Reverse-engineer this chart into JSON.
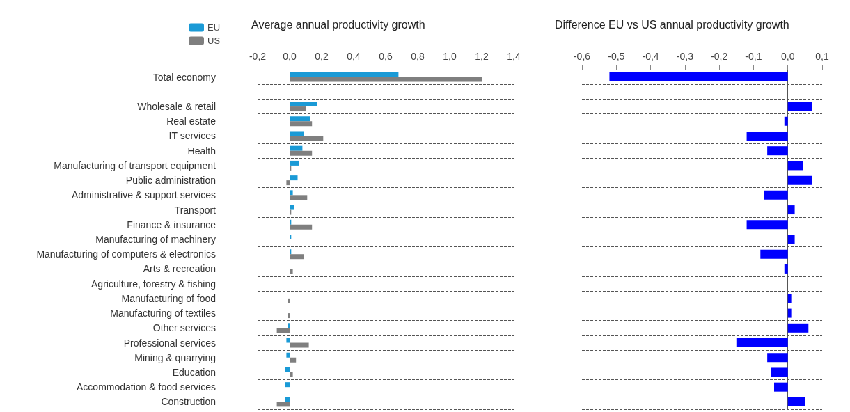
{
  "chart_data": [
    {
      "type": "bar",
      "orientation": "horizontal",
      "title": "Average annual productivity growth",
      "categories": [
        "Total economy",
        null,
        "Wholesale & retail",
        "Real estate",
        "IT services",
        "Health",
        "Manufacturing of transport equipment",
        "Public administration",
        "Administrative & support services",
        "Transport",
        "Finance & insurance",
        "Manufacturing of machinery",
        "Manufacturing of computers & electronics",
        "Arts & recreation",
        "Agriculture, forestry & fishing",
        "Manufacturing of food",
        "Manufacturing of textiles",
        "Other services",
        "Professional services",
        "Mining & quarrying",
        "Education",
        "Accommodation & food services",
        "Construction"
      ],
      "series": [
        {
          "name": "EU",
          "color": "#1a9ad6",
          "values": [
            0.68,
            null,
            0.17,
            0.13,
            0.09,
            0.08,
            0.06,
            0.05,
            0.02,
            0.03,
            0.01,
            0.01,
            0.01,
            0,
            0,
            0,
            0,
            -0.01,
            -0.02,
            -0.02,
            -0.03,
            -0.03,
            -0.03
          ]
        },
        {
          "name": "US",
          "color": "#7f7f7f",
          "values": [
            1.2,
            null,
            0.1,
            0.14,
            0.21,
            0.14,
            0.01,
            -0.02,
            0.11,
            0.01,
            0.14,
            0,
            0.09,
            0.02,
            0,
            -0.01,
            -0.01,
            -0.08,
            0.12,
            0.04,
            0.02,
            0,
            -0.08
          ]
        }
      ],
      "xlim": [
        -0.2,
        1.4
      ],
      "xticks": [
        {
          "value": -0.2,
          "label": "-0,2"
        },
        {
          "value": 0,
          "label": "0,0"
        },
        {
          "value": 0.2,
          "label": "0,2"
        },
        {
          "value": 0.4,
          "label": "0,4"
        },
        {
          "value": 0.6,
          "label": "0,6"
        },
        {
          "value": 0.8,
          "label": "0,8"
        },
        {
          "value": 1,
          "label": "1,0"
        },
        {
          "value": 1.2,
          "label": "1,2"
        },
        {
          "value": 1.4,
          "label": "1,4"
        }
      ],
      "grid": "y",
      "legend": "top left"
    },
    {
      "type": "bar",
      "orientation": "horizontal",
      "title": "Difference EU vs US annual productivity growth",
      "categories": [
        null,
        null,
        null,
        null,
        null,
        null,
        null,
        null,
        null,
        null,
        null,
        null,
        null,
        null,
        null,
        null,
        null,
        null,
        null,
        null,
        null,
        null,
        null
      ],
      "series": [
        {
          "color": "#0000ff",
          "values": [
            -0.52,
            null,
            0.07,
            -0.01,
            -0.12,
            -0.06,
            0.045,
            0.07,
            -0.07,
            0.02,
            -0.12,
            0.02,
            -0.08,
            -0.01,
            0,
            0.01,
            0.01,
            0.06,
            -0.15,
            -0.06,
            -0.05,
            -0.04,
            0.05
          ]
        }
      ],
      "xlim": [
        -0.6,
        0.1
      ],
      "xticks": [
        {
          "value": -0.6,
          "label": "-0,6"
        },
        {
          "value": -0.5,
          "label": "-0,5"
        },
        {
          "value": -0.4,
          "label": "-0,4"
        },
        {
          "value": -0.3,
          "label": "-0,3"
        },
        {
          "value": -0.2,
          "label": "-0,2"
        },
        {
          "value": -0.1,
          "label": "-0,1"
        },
        {
          "value": 0,
          "label": "0,0"
        },
        {
          "value": 0.1,
          "label": "0,1"
        }
      ],
      "grid": "y",
      "tick_labels": "x"
    }
  ]
}
